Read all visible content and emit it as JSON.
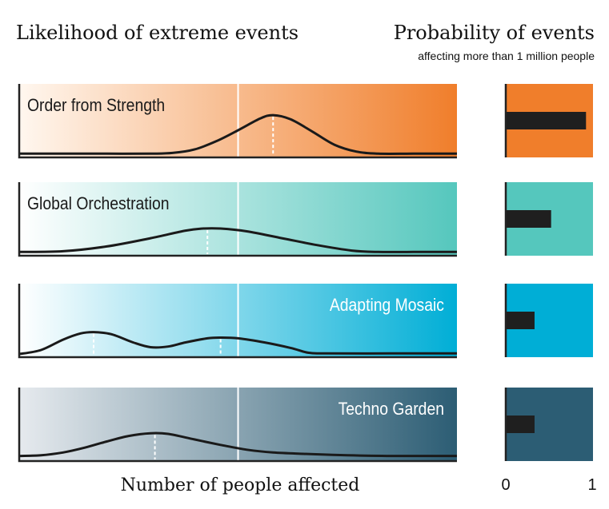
{
  "title_left": "Likelihood of extreme events",
  "title_right": "Probability of events",
  "subtitle_right": "affecting more than 1 million people",
  "xlabel": "Number of people affected",
  "bar_axis": {
    "min_label": "0",
    "max_label": "1"
  },
  "chart_data": {
    "type": "area",
    "title": "Likelihood of extreme events",
    "xlabel": "Number of people affected",
    "panels": [
      {
        "name": "Order from Strength",
        "label_align": "left",
        "colors": {
          "start": "#fff7ef",
          "end": "#f07e2b"
        },
        "probability": 0.92,
        "curve": [
          [
            0,
            0.02
          ],
          [
            0.1,
            0.02
          ],
          [
            0.2,
            0.02
          ],
          [
            0.3,
            0.02
          ],
          [
            0.35,
            0.03
          ],
          [
            0.4,
            0.08
          ],
          [
            0.45,
            0.2
          ],
          [
            0.5,
            0.36
          ],
          [
            0.55,
            0.53
          ],
          [
            0.58,
            0.58
          ],
          [
            0.62,
            0.52
          ],
          [
            0.67,
            0.34
          ],
          [
            0.72,
            0.15
          ],
          [
            0.77,
            0.05
          ],
          [
            0.82,
            0.02
          ],
          [
            0.9,
            0.02
          ],
          [
            1,
            0.02
          ]
        ],
        "peaks": [
          0.58
        ]
      },
      {
        "name": "Global Orchestration",
        "label_align": "left",
        "colors": {
          "start": "#ffffff",
          "end": "#55c7bd"
        },
        "probability": 0.52,
        "curve": [
          [
            0,
            0.02
          ],
          [
            0.1,
            0.03
          ],
          [
            0.2,
            0.1
          ],
          [
            0.3,
            0.22
          ],
          [
            0.38,
            0.33
          ],
          [
            0.42,
            0.36
          ],
          [
            0.46,
            0.36
          ],
          [
            0.52,
            0.32
          ],
          [
            0.6,
            0.22
          ],
          [
            0.68,
            0.12
          ],
          [
            0.76,
            0.04
          ],
          [
            0.82,
            0.02
          ],
          [
            0.9,
            0.02
          ],
          [
            1,
            0.02
          ]
        ],
        "peaks": [
          0.43
        ]
      },
      {
        "name": "Adapting Mosaic",
        "label_align": "right",
        "colors": {
          "start": "#ffffff",
          "end": "#00aed6"
        },
        "probability": 0.33,
        "curve": [
          [
            0,
            0.01
          ],
          [
            0.05,
            0.07
          ],
          [
            0.1,
            0.22
          ],
          [
            0.14,
            0.31
          ],
          [
            0.17,
            0.33
          ],
          [
            0.21,
            0.3
          ],
          [
            0.26,
            0.18
          ],
          [
            0.3,
            0.11
          ],
          [
            0.34,
            0.12
          ],
          [
            0.38,
            0.18
          ],
          [
            0.43,
            0.24
          ],
          [
            0.46,
            0.25
          ],
          [
            0.5,
            0.24
          ],
          [
            0.56,
            0.18
          ],
          [
            0.62,
            0.1
          ],
          [
            0.66,
            0.03
          ],
          [
            0.7,
            0.02
          ],
          [
            0.85,
            0.02
          ],
          [
            1,
            0.02
          ]
        ],
        "peaks": [
          0.17,
          0.46
        ]
      },
      {
        "name": "Techno Garden",
        "label_align": "right",
        "colors": {
          "start": "#e6eaee",
          "end": "#2c5d74"
        },
        "probability": 0.33,
        "curve": [
          [
            0,
            0.04
          ],
          [
            0.05,
            0.05
          ],
          [
            0.1,
            0.09
          ],
          [
            0.15,
            0.16
          ],
          [
            0.2,
            0.25
          ],
          [
            0.25,
            0.33
          ],
          [
            0.3,
            0.37
          ],
          [
            0.34,
            0.36
          ],
          [
            0.4,
            0.28
          ],
          [
            0.46,
            0.2
          ],
          [
            0.52,
            0.13
          ],
          [
            0.58,
            0.09
          ],
          [
            0.65,
            0.07
          ],
          [
            0.75,
            0.05
          ],
          [
            0.85,
            0.04
          ],
          [
            1,
            0.04
          ]
        ],
        "peaks": [
          0.31
        ]
      }
    ],
    "threshold_x": 0.5,
    "bar_range": [
      0,
      1
    ]
  }
}
